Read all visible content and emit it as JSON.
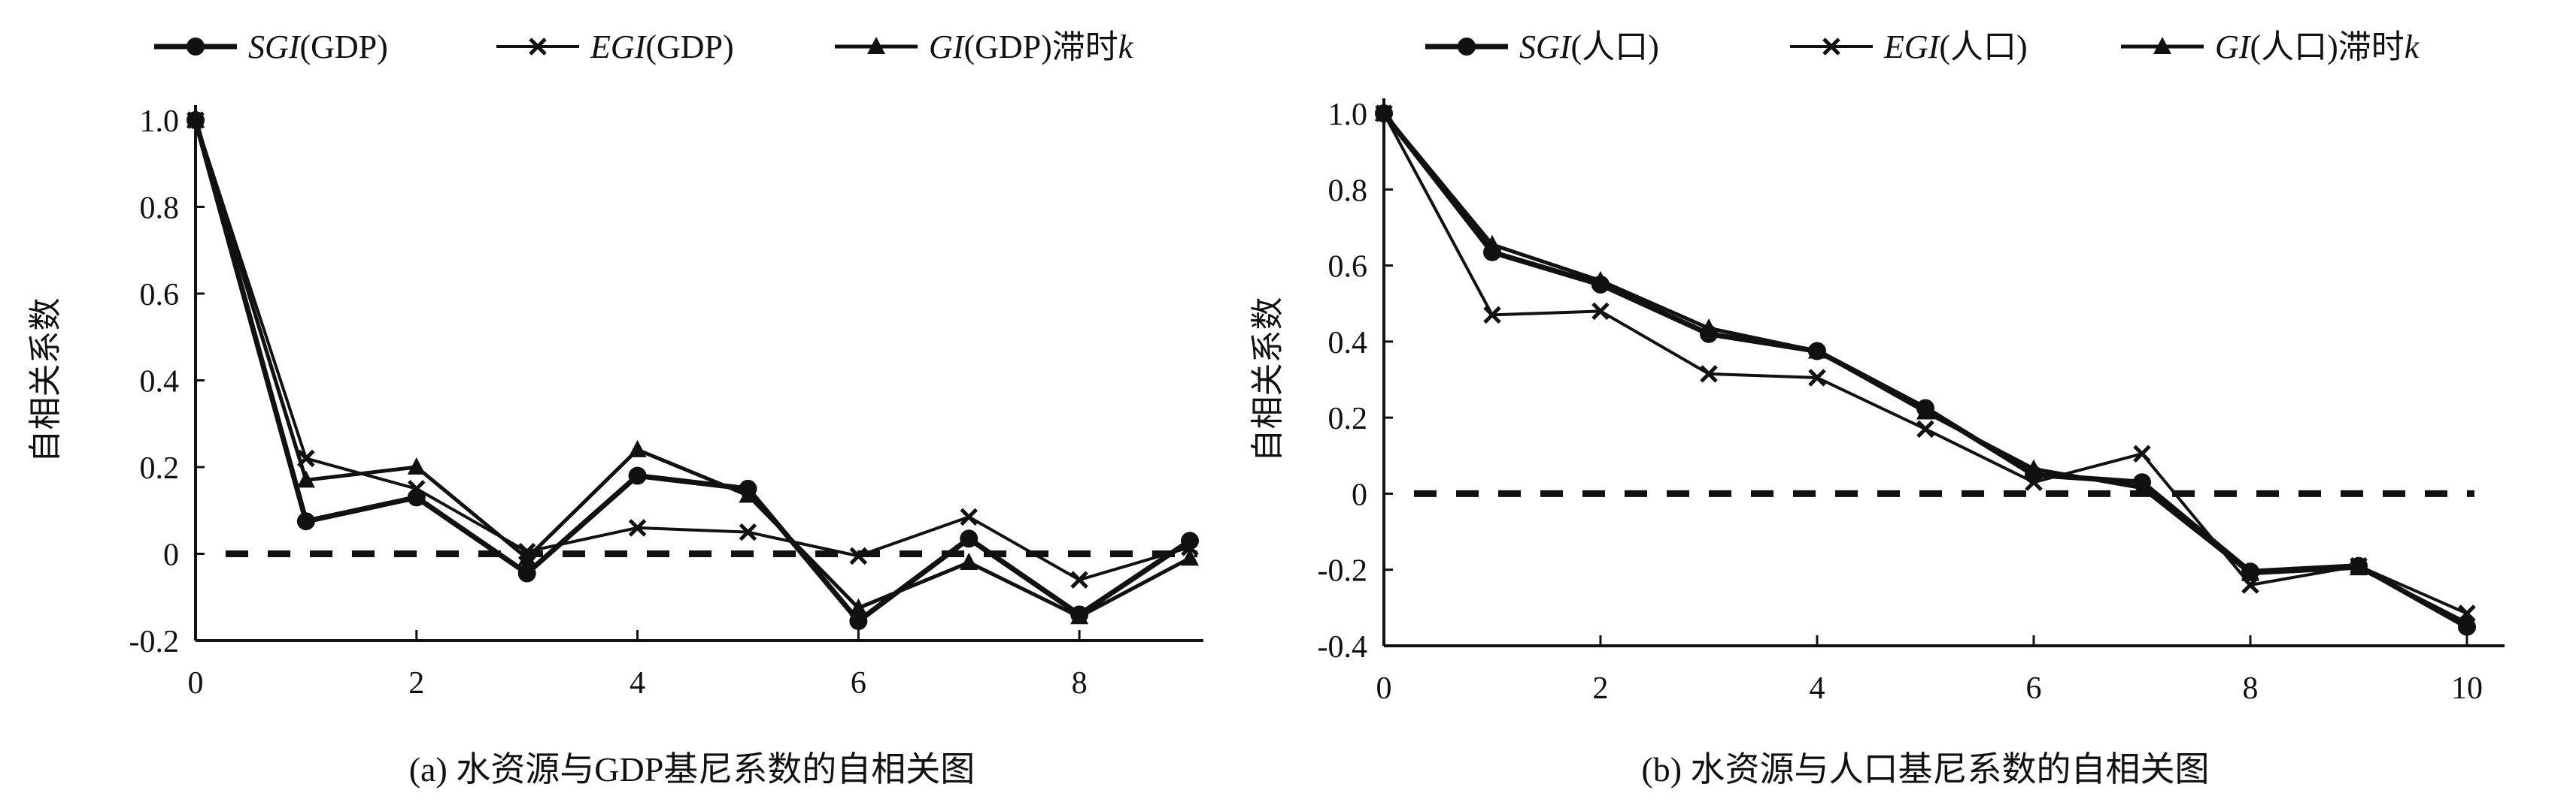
{
  "chart_data": [
    {
      "type": "line",
      "caption": "(a) 水资源与GDP基尼系数的自相关图",
      "ylabel": "自相关系数",
      "xlabel": "",
      "xlim": [
        0,
        9
      ],
      "ylim": [
        -0.2,
        1.0
      ],
      "xticks": [
        "0",
        "2",
        "4",
        "6",
        "8"
      ],
      "yticks": [
        "-0.2",
        "0",
        "0.2",
        "0.4",
        "0.6",
        "0.8",
        "1.0"
      ],
      "legend_position": "top",
      "x": [
        0,
        1,
        2,
        3,
        4,
        5,
        6,
        7,
        8,
        9
      ],
      "series": [
        {
          "name": "SGI",
          "suffix": "(GDP)",
          "marker": "circle",
          "values": [
            1.0,
            0.075,
            0.13,
            -0.045,
            0.18,
            0.15,
            -0.155,
            0.035,
            -0.14,
            0.03
          ]
        },
        {
          "name": "EGI",
          "suffix": "(GDP)",
          "marker": "x",
          "values": [
            1.0,
            0.22,
            0.15,
            0.005,
            0.06,
            0.05,
            -0.005,
            0.085,
            -0.06,
            0.015
          ]
        },
        {
          "name": "GI",
          "suffix": "(GDP)滞时",
          "suffix2": "k",
          "marker": "triangle",
          "values": [
            1.0,
            0.17,
            0.2,
            -0.01,
            0.24,
            0.135,
            -0.125,
            -0.02,
            -0.145,
            -0.01
          ]
        }
      ],
      "reference_line": 0
    },
    {
      "type": "line",
      "caption": "(b) 水资源与人口基尼系数的自相关图",
      "ylabel": "自相关系数",
      "xlabel": "",
      "xlim": [
        0,
        10
      ],
      "ylim": [
        -0.4,
        1.0
      ],
      "xticks": [
        "0",
        "2",
        "4",
        "6",
        "8",
        "10"
      ],
      "yticks": [
        "-0.4",
        "-0.2",
        "0",
        "0.2",
        "0.4",
        "0.6",
        "0.8",
        "1.0"
      ],
      "legend_position": "top",
      "x": [
        0,
        1,
        2,
        3,
        4,
        5,
        6,
        7,
        8,
        9,
        10
      ],
      "series": [
        {
          "name": "SGI",
          "suffix": "(人口)",
          "marker": "circle",
          "values": [
            1.0,
            0.635,
            0.55,
            0.42,
            0.375,
            0.225,
            0.05,
            0.03,
            -0.205,
            -0.19,
            -0.35
          ]
        },
        {
          "name": "EGI",
          "suffix": "(人口)",
          "marker": "x",
          "values": [
            1.0,
            0.47,
            0.48,
            0.315,
            0.305,
            0.17,
            0.03,
            0.105,
            -0.24,
            -0.19,
            -0.315
          ]
        },
        {
          "name": "GI",
          "suffix": "(人口)滞时",
          "suffix2": "k",
          "marker": "triangle",
          "values": [
            1.0,
            0.655,
            0.56,
            0.435,
            0.375,
            0.215,
            0.065,
            0.015,
            -0.21,
            -0.195,
            -0.34
          ]
        }
      ],
      "reference_line": 0
    }
  ]
}
